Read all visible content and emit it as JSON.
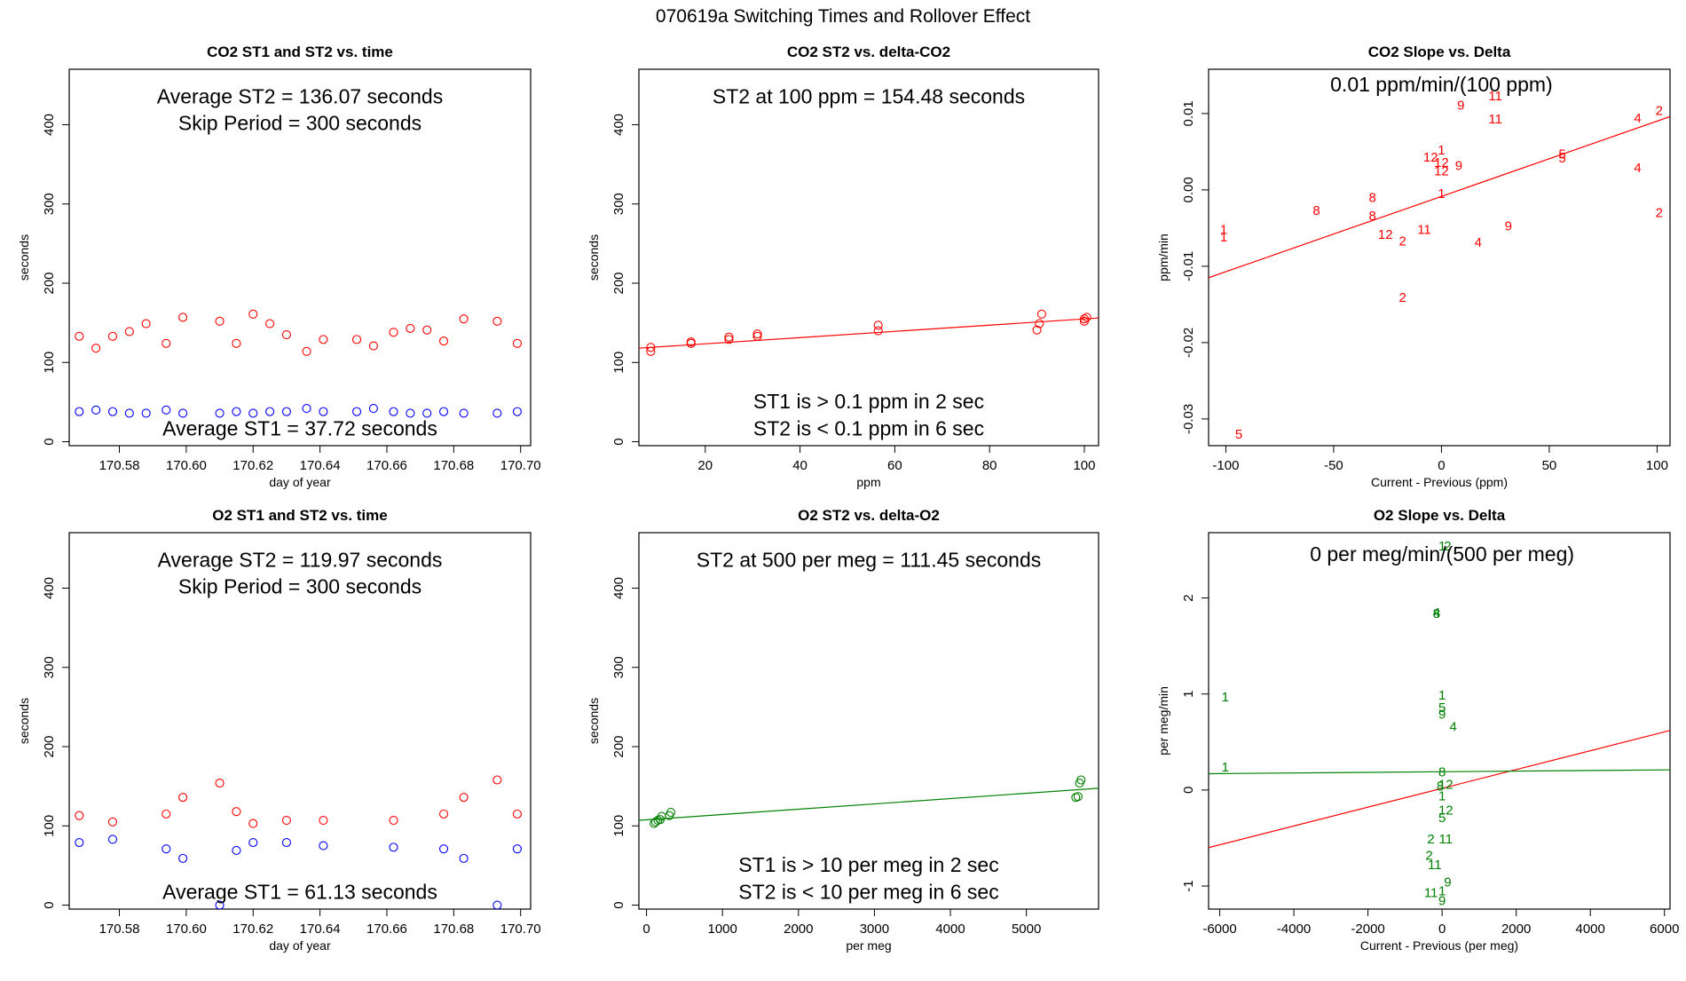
{
  "page_title": "070619a   Switching Times and Rollover Effect",
  "colors": {
    "red": "#ff0000",
    "blue": "#0000ff",
    "green": "#008000",
    "black": "#000000"
  },
  "chart_data": [
    {
      "id": "co2_time",
      "type": "scatter",
      "title": "CO2 ST1 and ST2 vs. time",
      "xlabel": "day of year",
      "ylabel": "seconds",
      "xlim": [
        170.565,
        170.703
      ],
      "ylim": [
        -5,
        470
      ],
      "xticks": [
        170.58,
        170.6,
        170.62,
        170.64,
        170.66,
        170.68,
        170.7
      ],
      "xtick_labels": [
        "170.58",
        "170.60",
        "170.62",
        "170.64",
        "170.66",
        "170.68",
        "170.70"
      ],
      "yticks": [
        0,
        100,
        200,
        300,
        400
      ],
      "ytick_labels": [
        "0",
        "100",
        "200",
        "300",
        "400"
      ],
      "annotations": [
        {
          "text": "Average ST2 =  136.07  seconds",
          "x": 170.634,
          "y": 436
        },
        {
          "text": "Skip Period =  300  seconds",
          "x": 170.634,
          "y": 402
        },
        {
          "text": "Average ST1 =  37.72  seconds",
          "x": 170.634,
          "y": 17
        }
      ],
      "series": [
        {
          "marker": "circle",
          "color": "#ff0000",
          "x": [
            170.568,
            170.573,
            170.578,
            170.583,
            170.588,
            170.594,
            170.599,
            170.61,
            170.615,
            170.62,
            170.625,
            170.63,
            170.636,
            170.641,
            170.651,
            170.656,
            170.662,
            170.667,
            170.672,
            170.677,
            170.683,
            170.693,
            170.699
          ],
          "y": [
            133,
            118,
            133,
            139,
            149,
            124,
            157,
            152,
            124,
            161,
            149,
            135,
            114,
            129,
            129,
            121,
            138,
            143,
            141,
            127,
            155,
            152,
            124
          ]
        },
        {
          "marker": "circle",
          "color": "#0000ff",
          "x": [
            170.568,
            170.573,
            170.578,
            170.583,
            170.588,
            170.594,
            170.599,
            170.61,
            170.615,
            170.62,
            170.625,
            170.63,
            170.636,
            170.641,
            170.651,
            170.656,
            170.662,
            170.667,
            170.672,
            170.677,
            170.683,
            170.693,
            170.699
          ],
          "y": [
            38,
            40,
            38,
            36,
            36,
            40,
            36,
            36,
            38,
            36,
            38,
            38,
            42,
            38,
            38,
            42,
            38,
            36,
            36,
            38,
            36,
            36,
            38
          ]
        }
      ]
    },
    {
      "id": "co2_delta",
      "type": "scatter",
      "title": "CO2 ST2 vs. delta-CO2",
      "xlabel": "ppm",
      "ylabel": "seconds",
      "xlim": [
        6,
        103
      ],
      "ylim": [
        -5,
        470
      ],
      "xticks": [
        20,
        40,
        60,
        80,
        100
      ],
      "xtick_labels": [
        "20",
        "40",
        "60",
        "80",
        "100"
      ],
      "yticks": [
        0,
        100,
        200,
        300,
        400
      ],
      "ytick_labels": [
        "0",
        "100",
        "200",
        "300",
        "400"
      ],
      "annotations": [
        {
          "text": "ST2 at 100 ppm =  154.48  seconds",
          "x": 54.5,
          "y": 436
        },
        {
          "text": "ST1 is > 0.1 ppm in 2 sec",
          "x": 54.5,
          "y": 51
        },
        {
          "text": "ST2 is < 0.1 ppm in 6 sec",
          "x": 54.5,
          "y": 17
        }
      ],
      "lines": [
        {
          "color": "#ff0000",
          "x": [
            6,
            103
          ],
          "y": [
            118.0,
            156.1
          ]
        }
      ],
      "series": [
        {
          "marker": "circle",
          "color": "#ff0000",
          "x": [
            8.5,
            8.5,
            17,
            17,
            25,
            25,
            31,
            31,
            56.5,
            56.5,
            90,
            90.5,
            91,
            100,
            100,
            100.5
          ],
          "y": [
            114,
            119,
            124,
            126,
            129,
            132,
            133,
            136,
            140,
            147,
            141,
            149,
            161,
            152,
            155,
            157
          ]
        }
      ]
    },
    {
      "id": "co2_slope",
      "type": "scatter",
      "title": "CO2 Slope vs. Delta",
      "xlabel": "Current - Previous (ppm)",
      "ylabel": "ppm/min",
      "xlim": [
        -108,
        106
      ],
      "ylim": [
        -0.0335,
        0.0158
      ],
      "xticks": [
        -100,
        -50,
        0,
        50,
        100
      ],
      "xtick_labels": [
        "-100",
        "-50",
        "0",
        "50",
        "100"
      ],
      "yticks": [
        -0.03,
        -0.02,
        -0.01,
        0.0,
        0.01
      ],
      "ytick_labels": [
        "-0.03",
        "-0.02",
        "-0.01",
        "0.00",
        "0.01"
      ],
      "annotations": [
        {
          "text": "0.01  ppm/min/(100 ppm)",
          "x": 0,
          "y": 0.0138
        }
      ],
      "lines": [
        {
          "color": "#ff0000",
          "x": [
            -108,
            106
          ],
          "y": [
            -0.0115,
            0.0096
          ]
        }
      ],
      "labels": [
        {
          "color": "#ff0000",
          "x": [
            -101,
            -101,
            -94,
            -58,
            -32,
            -32,
            -26,
            -18,
            -18,
            -8,
            0,
            0,
            -5,
            0,
            0,
            8,
            9,
            25,
            25,
            31,
            17,
            56,
            56,
            91,
            91,
            101,
            101
          ],
          "y": [
            -0.0052,
            -0.0062,
            -0.032,
            -0.0027,
            -0.001,
            -0.0034,
            -0.0058,
            -0.0067,
            -0.0141,
            -0.0052,
            -0.0005,
            0.0052,
            0.0043,
            0.0025,
            0.0036,
            0.0032,
            0.0111,
            0.0123,
            0.0093,
            -0.0047,
            -0.0069,
            0.0047,
            0.0042,
            0.0094,
            0.0029,
            0.0104,
            -0.003
          ],
          "text": [
            "1",
            "1",
            "5",
            "8",
            "8",
            "8",
            "12",
            "2",
            "2",
            "11",
            "1",
            "1",
            "12",
            "12",
            "12",
            "9",
            "9",
            "11",
            "11",
            "9",
            "4",
            "5",
            "5",
            "4",
            "4",
            "2",
            "2"
          ]
        }
      ]
    },
    {
      "id": "o2_time",
      "type": "scatter",
      "title": "O2 ST1 and ST2 vs. time",
      "xlabel": "day of year",
      "ylabel": "seconds",
      "xlim": [
        170.565,
        170.703
      ],
      "ylim": [
        -5,
        470
      ],
      "xticks": [
        170.58,
        170.6,
        170.62,
        170.64,
        170.66,
        170.68,
        170.7
      ],
      "xtick_labels": [
        "170.58",
        "170.60",
        "170.62",
        "170.64",
        "170.66",
        "170.68",
        "170.70"
      ],
      "yticks": [
        0,
        100,
        200,
        300,
        400
      ],
      "ytick_labels": [
        "0",
        "100",
        "200",
        "300",
        "400"
      ],
      "annotations": [
        {
          "text": "Average ST2 =  119.97  seconds",
          "x": 170.634,
          "y": 436
        },
        {
          "text": "Skip Period =  300  seconds",
          "x": 170.634,
          "y": 402
        },
        {
          "text": "Average ST1 =  61.13  seconds",
          "x": 170.634,
          "y": 17
        }
      ],
      "series": [
        {
          "marker": "circle",
          "color": "#ff0000",
          "x": [
            170.568,
            170.578,
            170.594,
            170.599,
            170.61,
            170.615,
            170.62,
            170.63,
            170.641,
            170.662,
            170.677,
            170.683,
            170.693,
            170.699
          ],
          "y": [
            113,
            105,
            115,
            136,
            154,
            118,
            103,
            107,
            107,
            107,
            115,
            136,
            158,
            115
          ]
        },
        {
          "marker": "circle",
          "color": "#0000ff",
          "x": [
            170.568,
            170.578,
            170.594,
            170.599,
            170.61,
            170.615,
            170.62,
            170.63,
            170.641,
            170.662,
            170.677,
            170.683,
            170.693,
            170.699
          ],
          "y": [
            79,
            83,
            71,
            59,
            0,
            69,
            79,
            79,
            75,
            73,
            71,
            59,
            0,
            71
          ]
        }
      ]
    },
    {
      "id": "o2_delta",
      "type": "scatter",
      "title": "O2 ST2 vs. delta-O2",
      "xlabel": "per meg",
      "ylabel": "seconds",
      "xlim": [
        -100,
        5950
      ],
      "ylim": [
        -5,
        470
      ],
      "xticks": [
        0,
        1000,
        2000,
        3000,
        4000,
        5000
      ],
      "xtick_labels": [
        "0",
        "1000",
        "2000",
        "3000",
        "4000",
        "5000"
      ],
      "yticks": [
        0,
        100,
        200,
        300,
        400
      ],
      "ytick_labels": [
        "0",
        "100",
        "200",
        "300",
        "400"
      ],
      "annotations": [
        {
          "text": "ST2 at 500 per meg =  111.45  seconds",
          "x": 2925,
          "y": 436
        },
        {
          "text": "ST1 is > 10 per meg in 2 sec",
          "x": 2925,
          "y": 51
        },
        {
          "text": "ST2 is < 10 per meg in 6 sec",
          "x": 2925,
          "y": 17
        }
      ],
      "lines": [
        {
          "color": "#008000",
          "x": [
            -100,
            5950
          ],
          "y": [
            107.0,
            147.5
          ]
        }
      ],
      "series": [
        {
          "marker": "circle",
          "color": "#008000",
          "x": [
            100,
            120,
            150,
            180,
            200,
            300,
            320,
            5650,
            5680,
            5700,
            5720
          ],
          "y": [
            103,
            105,
            107,
            108,
            112,
            113,
            117,
            136,
            137,
            154,
            158
          ]
        }
      ]
    },
    {
      "id": "o2_slope",
      "type": "scatter",
      "title": "O2 Slope vs. Delta",
      "xlabel": "Current - Previous (per meg)",
      "ylabel": "per meg/min",
      "xlim": [
        -6300,
        6150
      ],
      "ylim": [
        -1.24,
        2.68
      ],
      "xticks": [
        -6000,
        -4000,
        -2000,
        0,
        2000,
        4000,
        6000
      ],
      "xtick_labels": [
        "-6000",
        "-4000",
        "-2000",
        "0",
        "2000",
        "4000",
        "6000"
      ],
      "yticks": [
        -1,
        0,
        1,
        2
      ],
      "ytick_labels": [
        "-1",
        "0",
        "1",
        "2"
      ],
      "annotations": [
        {
          "text": "0  per meg/min/(500 per meg)",
          "x": 0,
          "y": 2.46
        }
      ],
      "lines": [
        {
          "color": "#ff0000",
          "x": [
            -6300,
            6150
          ],
          "y": [
            -0.6,
            0.62
          ]
        },
        {
          "color": "#008000",
          "x": [
            -6300,
            6150
          ],
          "y": [
            0.17,
            0.21
          ]
        }
      ],
      "labels": [
        {
          "color": "#008000",
          "x": [
            -5850,
            -5850,
            0,
            150,
            -150,
            -150,
            0,
            0,
            0,
            300,
            0,
            -50,
            100,
            0,
            100,
            0,
            -300,
            100,
            -350,
            -200,
            -300,
            150,
            0,
            0
          ],
          "y": [
            0.97,
            0.24,
            2.54,
            2.54,
            1.84,
            1.85,
            0.99,
            0.86,
            0.79,
            0.66,
            0.19,
            0.04,
            0.06,
            -0.06,
            -0.21,
            -0.29,
            -0.51,
            -0.51,
            -0.68,
            -0.78,
            -1.07,
            -0.96,
            -1.05,
            -1.15
          ],
          "text": [
            "1",
            "1",
            "1",
            "2",
            "8",
            "4",
            "1",
            "5",
            "9",
            "4",
            "8",
            "8",
            "12",
            "1",
            "12",
            "5",
            "2",
            "11",
            "2",
            "11",
            "11",
            "9",
            "1",
            "9"
          ]
        }
      ]
    }
  ]
}
